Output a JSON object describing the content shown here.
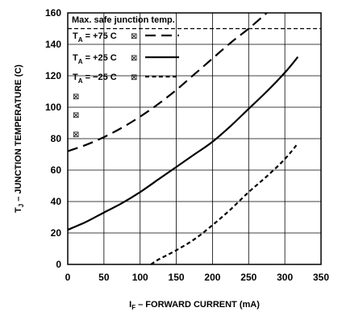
{
  "chart_data": {
    "type": "line",
    "xlabel_main": "I",
    "xlabel_sub": "F",
    "xlabel_rest": " – FORWARD CURRENT (mA)",
    "ylabel_main": "T",
    "ylabel_sub": "J",
    "ylabel_rest": " – JUNCTION TEMPERATURE (C)",
    "xlim": [
      0,
      350
    ],
    "ylim": [
      0,
      160
    ],
    "x_ticks": [
      "0",
      "50",
      "100",
      "150",
      "200",
      "250",
      "300",
      "350"
    ],
    "y_ticks": [
      "0",
      "20",
      "40",
      "60",
      "80",
      "100",
      "120",
      "140",
      "160"
    ],
    "grid": true,
    "reference_line": {
      "label": "Max. safe junction temp.",
      "y": 150
    },
    "legend_placement": "top-left",
    "series": [
      {
        "name_main": "T",
        "name_sub": "A",
        "name_rest": " = +75 C",
        "glyph": "⊠",
        "style": "dashed",
        "x": [
          0,
          25,
          50,
          75,
          100,
          125,
          150,
          175,
          200,
          225,
          250,
          275
        ],
        "y": [
          72,
          76,
          81,
          87,
          94,
          102,
          111,
          121,
          131,
          141,
          150,
          160
        ]
      },
      {
        "name_main": "T",
        "name_sub": "A",
        "name_rest": " = +25 C",
        "glyph": "⊠",
        "style": "solid",
        "x": [
          0,
          25,
          50,
          75,
          100,
          125,
          150,
          175,
          200,
          225,
          250,
          275,
          300,
          318
        ],
        "y": [
          22,
          27,
          33,
          39,
          46,
          54,
          62,
          70,
          78,
          88,
          99,
          110,
          122,
          132
        ]
      },
      {
        "name_main": "T",
        "name_sub": "A",
        "name_rest": " = −25 C",
        "glyph": "⊠",
        "style": "dotted",
        "x": [
          115,
          125,
          150,
          175,
          200,
          225,
          250,
          275,
          300,
          318
        ],
        "y": [
          0,
          3,
          9,
          16,
          25,
          35,
          46,
          56,
          67,
          77
        ]
      }
    ],
    "extra_glyphs": [
      "⊠",
      "⊠",
      "⊠"
    ]
  }
}
